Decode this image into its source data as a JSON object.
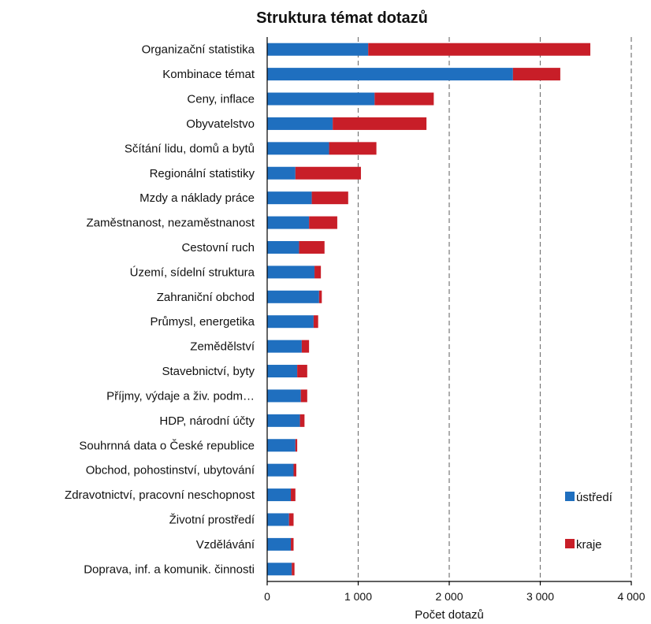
{
  "chart_data": {
    "type": "bar",
    "orientation": "horizontal",
    "stacked": true,
    "title": "Struktura témat dotazů",
    "xlabel": "Počet dotazů",
    "ylabel": "",
    "xlim": [
      0,
      4000
    ],
    "xticks": [
      0,
      1000,
      2000,
      3000,
      4000
    ],
    "xtick_labels": [
      "0",
      "1 000",
      "2 000",
      "3 000",
      "4 000"
    ],
    "grid": "vertical dashed",
    "legend_position": "right",
    "categories": [
      "Organizační statistika",
      "Kombinace témat",
      "Ceny, inflace",
      "Obyvatelstvo",
      "Sčítání lidu, domů a bytů",
      "Regionální statistiky",
      "Mzdy a náklady práce",
      "Zaměstnanost, nezaměstnanost",
      "Cestovní ruch",
      "Území, sídelní struktura",
      "Zahraniční obchod",
      "Průmysl, energetika",
      "Zemědělství",
      "Stavebnictví, byty",
      "Příjmy, výdaje a živ. podm…",
      "HDP, národní účty",
      "Souhrnná data o České republice",
      "Obchod, pohostinství, ubytování",
      "Zdravotnictví, pracovní neschopnost",
      "Životní prostředí",
      "Vzdělávání",
      "Doprava, inf. a komunik. činnosti"
    ],
    "series": [
      {
        "name": "ústředí",
        "color": "#1f6fbf",
        "values": [
          1110,
          2700,
          1180,
          720,
          680,
          310,
          490,
          460,
          350,
          520,
          570,
          510,
          380,
          330,
          370,
          360,
          310,
          290,
          260,
          240,
          260,
          270
        ]
      },
      {
        "name": "kraje",
        "color": "#c81e28",
        "values": [
          2440,
          520,
          650,
          1030,
          520,
          720,
          400,
          310,
          280,
          70,
          30,
          50,
          80,
          110,
          70,
          50,
          20,
          30,
          50,
          50,
          30,
          30
        ]
      }
    ]
  }
}
